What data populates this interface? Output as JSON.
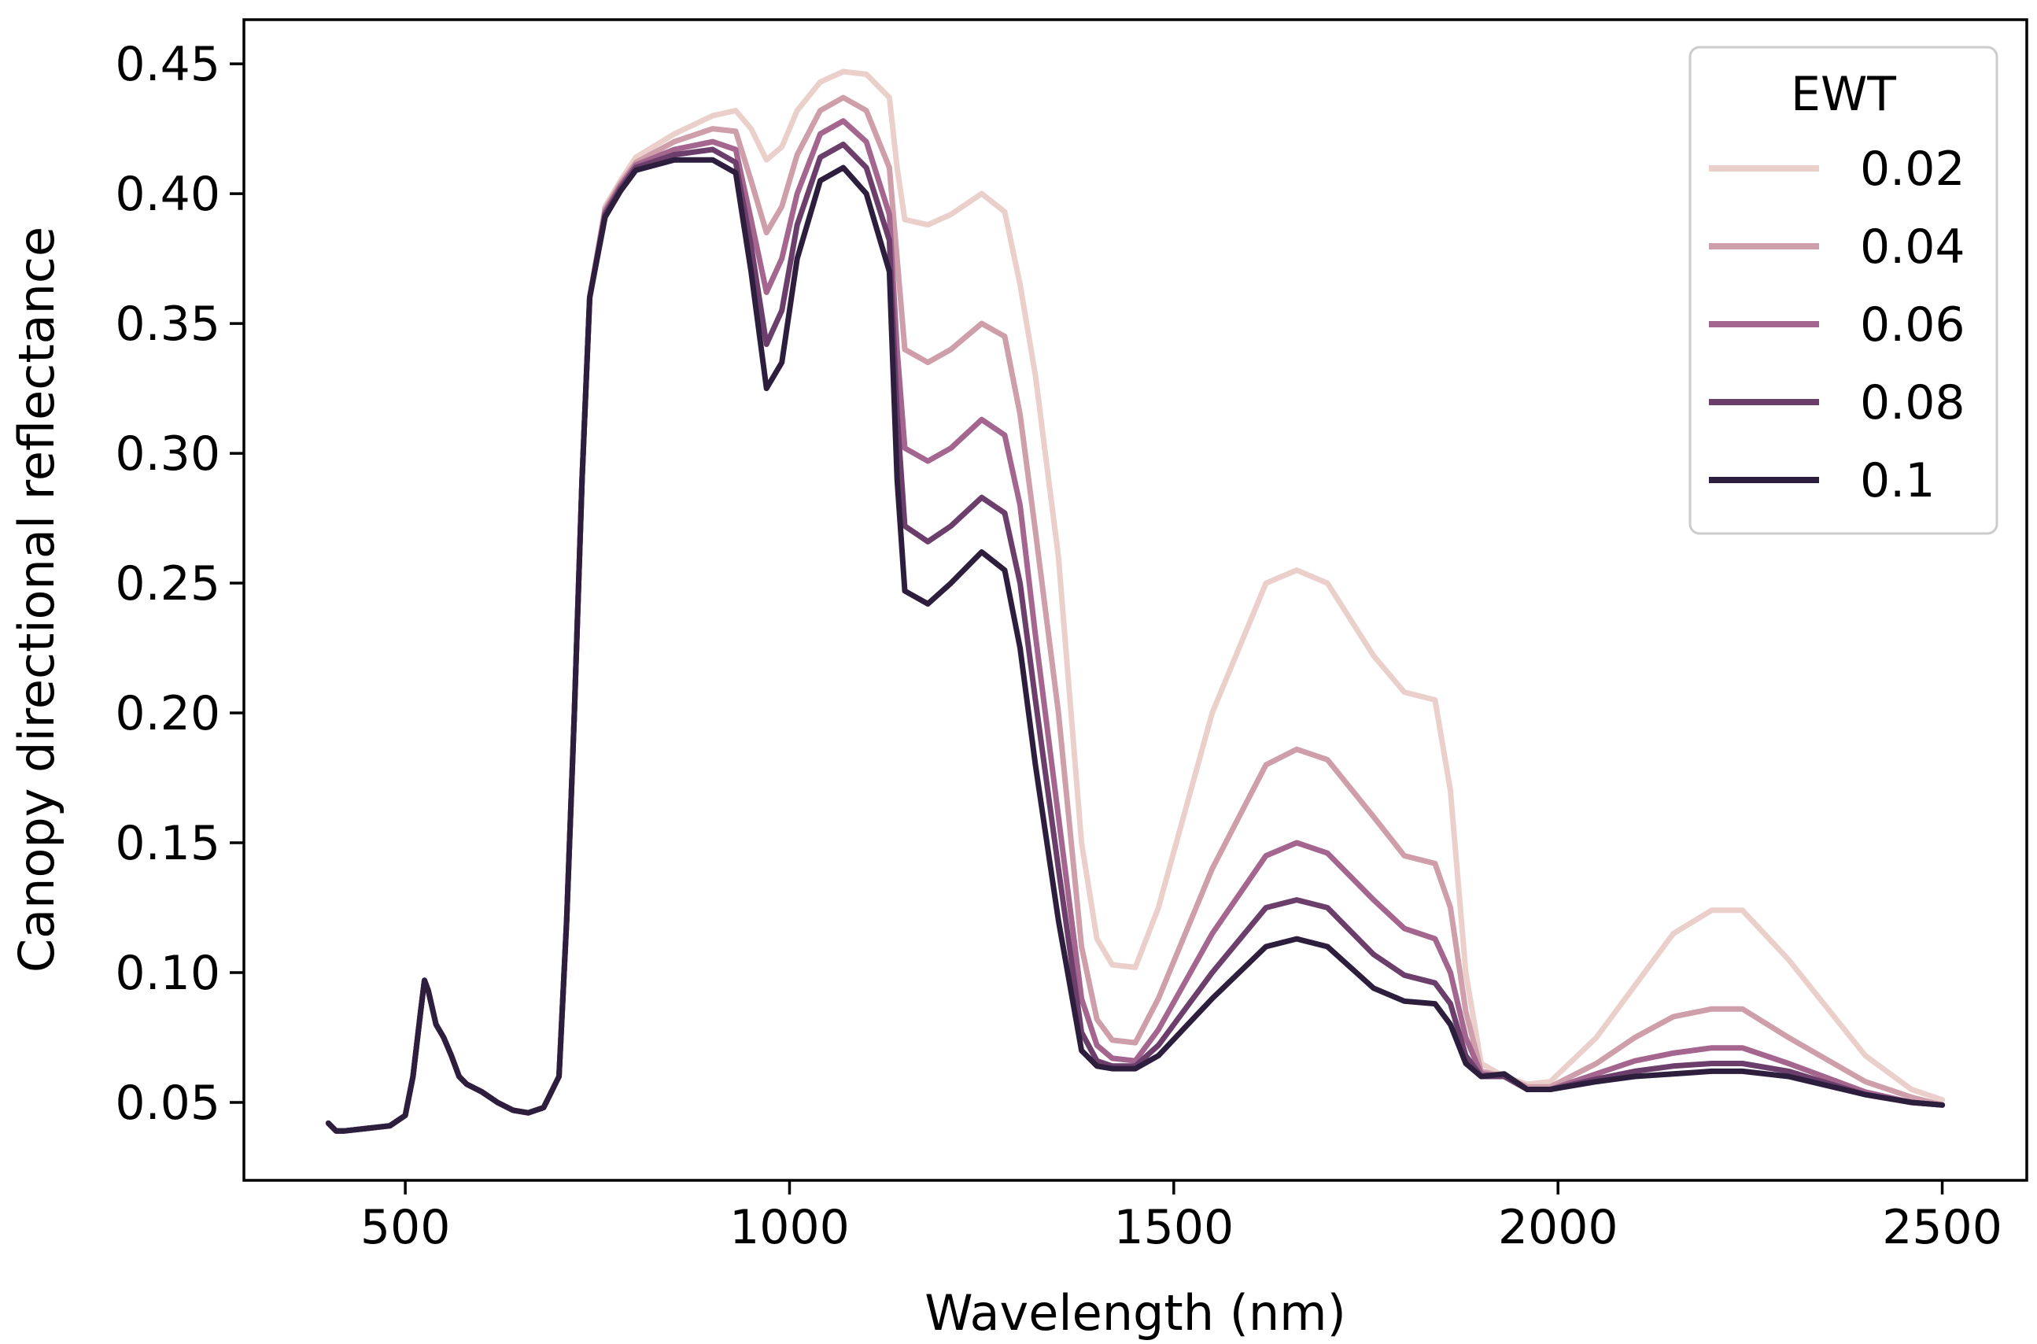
{
  "chart_data": {
    "type": "line",
    "title": "",
    "xlabel": "Wavelength (nm)",
    "ylabel": "Canopy directional reflectance",
    "xlim": [
      290,
      2610
    ],
    "ylim": [
      0.02,
      0.467
    ],
    "xticks": [
      500,
      1000,
      1500,
      2000,
      2500
    ],
    "xtick_labels": [
      "500",
      "1000",
      "1500",
      "2000",
      "2500"
    ],
    "yticks": [
      0.05,
      0.1,
      0.15,
      0.2,
      0.25,
      0.3,
      0.35,
      0.4,
      0.45
    ],
    "ytick_labels": [
      "0.05",
      "0.10",
      "0.15",
      "0.20",
      "0.25",
      "0.30",
      "0.35",
      "0.40",
      "0.45"
    ],
    "grid": false,
    "legend": {
      "title": "EWT",
      "position": "top-right"
    },
    "series": [
      {
        "name": "0.02",
        "color": "#ebcfcb",
        "x": [
          400,
          410,
          420,
          450,
          480,
          500,
          510,
          520,
          525,
          530,
          540,
          550,
          560,
          570,
          580,
          600,
          620,
          640,
          660,
          680,
          700,
          710,
          720,
          730,
          740,
          760,
          780,
          800,
          850,
          900,
          930,
          950,
          970,
          990,
          1010,
          1040,
          1070,
          1100,
          1130,
          1140,
          1150,
          1180,
          1210,
          1250,
          1280,
          1300,
          1320,
          1350,
          1380,
          1400,
          1420,
          1450,
          1480,
          1550,
          1620,
          1660,
          1700,
          1760,
          1800,
          1840,
          1860,
          1880,
          1900,
          1930,
          1960,
          1990,
          2050,
          2100,
          2150,
          2200,
          2240,
          2300,
          2400,
          2460,
          2500
        ],
        "values": [
          0.042,
          0.039,
          0.039,
          0.04,
          0.041,
          0.045,
          0.06,
          0.085,
          0.097,
          0.093,
          0.08,
          0.075,
          0.068,
          0.06,
          0.057,
          0.054,
          0.05,
          0.047,
          0.046,
          0.048,
          0.06,
          0.12,
          0.2,
          0.29,
          0.36,
          0.395,
          0.405,
          0.414,
          0.423,
          0.43,
          0.432,
          0.425,
          0.413,
          0.418,
          0.432,
          0.443,
          0.447,
          0.446,
          0.437,
          0.41,
          0.39,
          0.388,
          0.392,
          0.4,
          0.393,
          0.365,
          0.33,
          0.26,
          0.15,
          0.113,
          0.103,
          0.102,
          0.125,
          0.2,
          0.25,
          0.255,
          0.25,
          0.222,
          0.208,
          0.205,
          0.17,
          0.1,
          0.065,
          0.06,
          0.057,
          0.058,
          0.075,
          0.095,
          0.115,
          0.124,
          0.124,
          0.105,
          0.068,
          0.055,
          0.051
        ]
      },
      {
        "name": "0.04",
        "color": "#ce9eaa",
        "x": [
          400,
          410,
          420,
          450,
          480,
          500,
          510,
          520,
          525,
          530,
          540,
          550,
          560,
          570,
          580,
          600,
          620,
          640,
          660,
          680,
          700,
          710,
          720,
          730,
          740,
          760,
          780,
          800,
          850,
          900,
          930,
          950,
          970,
          990,
          1010,
          1040,
          1070,
          1100,
          1130,
          1140,
          1150,
          1180,
          1210,
          1250,
          1280,
          1300,
          1320,
          1350,
          1380,
          1400,
          1420,
          1450,
          1480,
          1550,
          1620,
          1660,
          1700,
          1760,
          1800,
          1840,
          1860,
          1880,
          1900,
          1930,
          1960,
          1990,
          2050,
          2100,
          2150,
          2200,
          2240,
          2300,
          2400,
          2460,
          2500
        ],
        "values": [
          0.042,
          0.039,
          0.039,
          0.04,
          0.041,
          0.045,
          0.06,
          0.085,
          0.097,
          0.093,
          0.08,
          0.075,
          0.068,
          0.06,
          0.057,
          0.054,
          0.05,
          0.047,
          0.046,
          0.048,
          0.06,
          0.12,
          0.2,
          0.29,
          0.36,
          0.394,
          0.404,
          0.412,
          0.42,
          0.425,
          0.424,
          0.405,
          0.385,
          0.395,
          0.415,
          0.432,
          0.437,
          0.432,
          0.41,
          0.375,
          0.34,
          0.335,
          0.34,
          0.35,
          0.345,
          0.315,
          0.27,
          0.2,
          0.11,
          0.082,
          0.074,
          0.073,
          0.09,
          0.14,
          0.18,
          0.186,
          0.182,
          0.16,
          0.145,
          0.142,
          0.125,
          0.085,
          0.062,
          0.06,
          0.056,
          0.056,
          0.065,
          0.075,
          0.083,
          0.086,
          0.086,
          0.075,
          0.058,
          0.052,
          0.049
        ]
      },
      {
        "name": "0.06",
        "color": "#a4668e",
        "x": [
          400,
          410,
          420,
          450,
          480,
          500,
          510,
          520,
          525,
          530,
          540,
          550,
          560,
          570,
          580,
          600,
          620,
          640,
          660,
          680,
          700,
          710,
          720,
          730,
          740,
          760,
          780,
          800,
          850,
          900,
          930,
          950,
          970,
          990,
          1010,
          1040,
          1070,
          1100,
          1130,
          1140,
          1150,
          1180,
          1210,
          1250,
          1280,
          1300,
          1320,
          1350,
          1380,
          1400,
          1420,
          1450,
          1480,
          1550,
          1620,
          1660,
          1700,
          1760,
          1800,
          1840,
          1860,
          1880,
          1900,
          1930,
          1960,
          1990,
          2050,
          2100,
          2150,
          2200,
          2240,
          2300,
          2400,
          2460,
          2500
        ],
        "values": [
          0.042,
          0.039,
          0.039,
          0.04,
          0.041,
          0.045,
          0.06,
          0.085,
          0.097,
          0.093,
          0.08,
          0.075,
          0.068,
          0.06,
          0.057,
          0.054,
          0.05,
          0.047,
          0.046,
          0.048,
          0.06,
          0.12,
          0.2,
          0.29,
          0.36,
          0.393,
          0.403,
          0.411,
          0.417,
          0.42,
          0.417,
          0.39,
          0.362,
          0.375,
          0.4,
          0.423,
          0.428,
          0.42,
          0.392,
          0.34,
          0.302,
          0.297,
          0.302,
          0.313,
          0.307,
          0.28,
          0.23,
          0.16,
          0.09,
          0.072,
          0.067,
          0.066,
          0.078,
          0.115,
          0.145,
          0.15,
          0.146,
          0.128,
          0.117,
          0.113,
          0.1,
          0.075,
          0.061,
          0.06,
          0.055,
          0.055,
          0.061,
          0.066,
          0.069,
          0.071,
          0.071,
          0.065,
          0.054,
          0.05,
          0.049
        ]
      },
      {
        "name": "0.08",
        "color": "#6b3e6b",
        "x": [
          400,
          410,
          420,
          450,
          480,
          500,
          510,
          520,
          525,
          530,
          540,
          550,
          560,
          570,
          580,
          600,
          620,
          640,
          660,
          680,
          700,
          710,
          720,
          730,
          740,
          760,
          780,
          800,
          850,
          900,
          930,
          950,
          970,
          990,
          1010,
          1040,
          1070,
          1100,
          1130,
          1140,
          1150,
          1180,
          1210,
          1250,
          1280,
          1300,
          1320,
          1350,
          1380,
          1400,
          1420,
          1450,
          1480,
          1550,
          1620,
          1660,
          1700,
          1760,
          1800,
          1840,
          1860,
          1880,
          1900,
          1930,
          1960,
          1990,
          2050,
          2100,
          2150,
          2200,
          2240,
          2300,
          2400,
          2460,
          2500
        ],
        "values": [
          0.042,
          0.039,
          0.039,
          0.04,
          0.041,
          0.045,
          0.06,
          0.085,
          0.097,
          0.093,
          0.08,
          0.075,
          0.068,
          0.06,
          0.057,
          0.054,
          0.05,
          0.047,
          0.046,
          0.048,
          0.06,
          0.12,
          0.2,
          0.29,
          0.36,
          0.392,
          0.402,
          0.41,
          0.415,
          0.417,
          0.412,
          0.38,
          0.342,
          0.355,
          0.388,
          0.414,
          0.419,
          0.41,
          0.382,
          0.315,
          0.272,
          0.266,
          0.272,
          0.283,
          0.277,
          0.25,
          0.205,
          0.14,
          0.077,
          0.066,
          0.064,
          0.064,
          0.072,
          0.1,
          0.125,
          0.128,
          0.125,
          0.107,
          0.099,
          0.096,
          0.088,
          0.068,
          0.06,
          0.06,
          0.055,
          0.055,
          0.059,
          0.062,
          0.064,
          0.065,
          0.065,
          0.062,
          0.053,
          0.05,
          0.049
        ]
      },
      {
        "name": "0.1",
        "color": "#2d1e3e",
        "x": [
          400,
          410,
          420,
          450,
          480,
          500,
          510,
          520,
          525,
          530,
          540,
          550,
          560,
          570,
          580,
          600,
          620,
          640,
          660,
          680,
          700,
          710,
          720,
          730,
          740,
          760,
          780,
          800,
          850,
          900,
          930,
          950,
          970,
          990,
          1010,
          1040,
          1070,
          1100,
          1130,
          1140,
          1150,
          1180,
          1210,
          1250,
          1280,
          1300,
          1320,
          1350,
          1380,
          1400,
          1420,
          1450,
          1480,
          1550,
          1620,
          1660,
          1700,
          1760,
          1800,
          1840,
          1860,
          1880,
          1900,
          1930,
          1960,
          1990,
          2050,
          2100,
          2150,
          2200,
          2240,
          2300,
          2400,
          2460,
          2500
        ],
        "values": [
          0.042,
          0.039,
          0.039,
          0.04,
          0.041,
          0.045,
          0.06,
          0.085,
          0.097,
          0.093,
          0.08,
          0.075,
          0.068,
          0.06,
          0.057,
          0.054,
          0.05,
          0.047,
          0.046,
          0.048,
          0.06,
          0.12,
          0.2,
          0.29,
          0.36,
          0.391,
          0.401,
          0.409,
          0.413,
          0.413,
          0.408,
          0.37,
          0.325,
          0.335,
          0.375,
          0.405,
          0.41,
          0.4,
          0.37,
          0.29,
          0.247,
          0.242,
          0.25,
          0.262,
          0.255,
          0.225,
          0.18,
          0.12,
          0.07,
          0.064,
          0.063,
          0.063,
          0.068,
          0.09,
          0.11,
          0.113,
          0.11,
          0.094,
          0.089,
          0.088,
          0.08,
          0.065,
          0.06,
          0.061,
          0.055,
          0.055,
          0.058,
          0.06,
          0.061,
          0.062,
          0.062,
          0.06,
          0.053,
          0.05,
          0.049
        ]
      }
    ]
  }
}
